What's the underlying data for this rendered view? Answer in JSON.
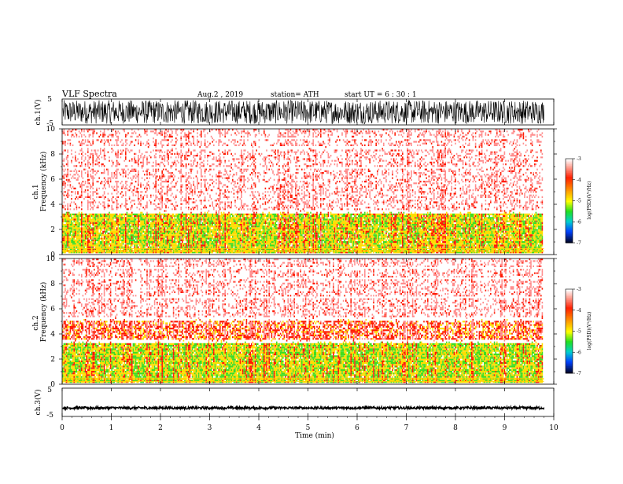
{
  "header": {
    "title": "VLF  Spectra",
    "date": "Aug.2  , 2019",
    "station": "station= ATH",
    "start": "start  UT  =    6  : 30 : 1"
  },
  "chart_data": [
    {
      "type": "line",
      "ylabel": "ch.1(V)",
      "ylim": [
        -5,
        5
      ],
      "yticks": [
        "5",
        "-5"
      ],
      "description_amplitude": "dense noise filling approximately -4.5 to 4.8 V"
    },
    {
      "type": "heatmap",
      "ylabel_line1": "ch.1",
      "ylabel_line2": "Frequency  (kHz)",
      "ylim": [
        0,
        10
      ],
      "yticks": [
        "0",
        "2",
        "4",
        "6",
        "8",
        "10"
      ],
      "colorbar": {
        "label": "log(PSD)(V²/Hz)",
        "ticks": [
          "-3",
          "-4",
          "-5",
          "-6",
          "-7"
        ],
        "range": [
          -7,
          -3
        ]
      },
      "bands": [
        {
          "from": 0.0,
          "to": 3.4,
          "level": -4.3
        },
        {
          "from": 3.4,
          "to": 6.8,
          "level": -3.3
        },
        {
          "from": 6.8,
          "to": 10.0,
          "level": -3.2
        }
      ]
    },
    {
      "type": "heatmap",
      "ylabel_line1": "ch.2",
      "ylabel_line2": "Frequency  (kHz)",
      "ylim": [
        0,
        10
      ],
      "yticks": [
        "0",
        "2",
        "4",
        "6",
        "8",
        "10"
      ],
      "colorbar": {
        "label": "log(PSD)(V²/Hz)",
        "ticks": [
          "-3",
          "-4",
          "-5",
          "-6",
          "-7"
        ],
        "range": [
          -7,
          -3
        ]
      },
      "bands": [
        {
          "from": 0.0,
          "to": 3.4,
          "level": -4.4
        },
        {
          "from": 3.4,
          "to": 5.2,
          "level": -3.8
        },
        {
          "from": 5.2,
          "to": 10.0,
          "level": -3.2
        }
      ]
    },
    {
      "type": "line",
      "ylabel": "ch.3(V)",
      "ylim": [
        -5,
        5
      ],
      "yticks": [
        "5",
        "-5"
      ],
      "description_amplitude": "flat trace near -2 V"
    }
  ],
  "xaxis": {
    "label": "Time  (min)",
    "ticks": [
      "0",
      "1",
      "2",
      "3",
      "4",
      "5",
      "6",
      "7",
      "8",
      "9",
      "10"
    ],
    "xlim": [
      0,
      10
    ],
    "data_end": 9.8
  },
  "colors": {
    "trace": "#000000",
    "strong": "#ff0000",
    "mid": "#e8e800",
    "low": "#00cc00",
    "weak_pink": "#ff9a9a"
  }
}
